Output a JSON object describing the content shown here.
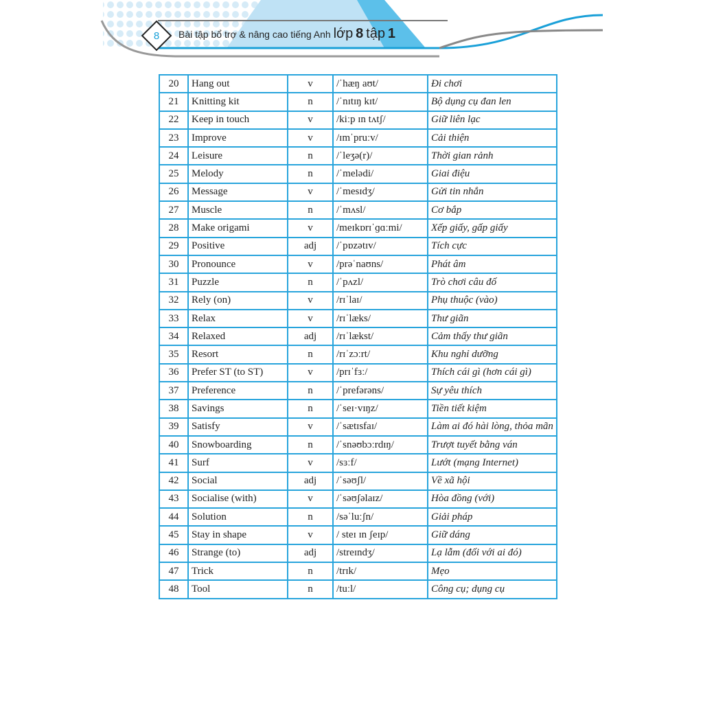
{
  "header": {
    "page_number": "8",
    "title_prefix": "Bài tập bổ trợ & nâng cao tiếng Anh",
    "title_grade": "lớp",
    "title_grade_num": "8",
    "title_volume": "tập",
    "title_volume_num": "1",
    "accent_color": "#27a4dc"
  },
  "rows": [
    [
      "20",
      "Hang out",
      "v",
      "/ˈhæŋ aʊt/",
      "Đi chơi"
    ],
    [
      "21",
      "Knitting kit",
      "n",
      "/ˈnɪtɪŋ kɪt/",
      "Bộ dụng cụ đan len"
    ],
    [
      "22",
      "Keep in touch",
      "v",
      "/kiːp ɪn tʌtʃ/",
      "Giữ liên lạc"
    ],
    [
      "23",
      "Improve",
      "v",
      "/ɪmˈpruːv/",
      "Cải thiện"
    ],
    [
      "24",
      "Leisure",
      "n",
      "/ˈleʒə(r)/",
      "Thời gian rảnh"
    ],
    [
      "25",
      "Melody",
      "n",
      "/ˈmelədi/",
      "Giai điệu"
    ],
    [
      "26",
      "Message",
      "v",
      "/ˈmesɪdʒ/",
      "Gửi tin nhắn"
    ],
    [
      "27",
      "Muscle",
      "n",
      "/ˈmʌsl/",
      "Cơ bắp"
    ],
    [
      "28",
      "Make origami",
      "v",
      "/meɪkɒrɪˈɡɑːmi/",
      "Xếp giấy, gấp giấy"
    ],
    [
      "29",
      "Positive",
      "adj",
      "/ˈpɒzətɪv/",
      "Tích cực"
    ],
    [
      "30",
      "Pronounce",
      "v",
      "/prəˈnaʊns/",
      "Phát âm"
    ],
    [
      "31",
      "Puzzle",
      "n",
      "/ˈpʌzl/",
      "Trò chơi câu đố"
    ],
    [
      "32",
      "Rely (on)",
      "v",
      "/rɪˈlaɪ/",
      "Phụ thuộc (vào)"
    ],
    [
      "33",
      "Relax",
      "v",
      "/rɪˈlæks/",
      "Thư giãn"
    ],
    [
      "34",
      "Relaxed",
      "adj",
      "/rɪˈlækst/",
      "Cảm thấy thư giãn"
    ],
    [
      "35",
      "Resort",
      "n",
      "/rɪˈzɔːrt/",
      "Khu nghỉ dưỡng"
    ],
    [
      "36",
      "Prefer ST (to ST)",
      "v",
      "/prɪˈfɜː/",
      "Thích cái gì (hơn cái gì)"
    ],
    [
      "37",
      "Preference",
      "n",
      "/ˈprefərəns/",
      "Sự yêu thích"
    ],
    [
      "38",
      "Savings",
      "n",
      "/ˈseɪ·vɪŋz/",
      "Tiền tiết kiệm"
    ],
    [
      "39",
      "Satisfy",
      "v",
      "/ˈsætɪsfaɪ/",
      "Làm ai đó hài lòng, thỏa mãn"
    ],
    [
      "40",
      "Snowboarding",
      "n",
      "/ˈsnəʊbɔːrdɪŋ/",
      "Trượt tuyết bằng ván"
    ],
    [
      "41",
      "Surf",
      "v",
      "/sɜːf/",
      "Lướt (mạng Internet)"
    ],
    [
      "42",
      "Social",
      "adj",
      "/ˈsəʊʃl/",
      "Về xã hội"
    ],
    [
      "43",
      "Socialise (with)",
      "v",
      "/ˈsəʊʃəlaɪz/",
      "Hòa đồng (với)"
    ],
    [
      "44",
      "Solution",
      "n",
      "/səˈluːʃn/",
      "Giải pháp"
    ],
    [
      "45",
      "Stay in shape",
      "v",
      "/ steɪ ɪn ʃeɪp/",
      "Giữ dáng"
    ],
    [
      "46",
      "Strange (to)",
      "adj",
      "/streɪndʒ/",
      "Lạ lẫm (đối với ai đó)"
    ],
    [
      "47",
      "Trick",
      "n",
      "/trɪk/",
      "Mẹo"
    ],
    [
      "48",
      "Tool",
      "n",
      "/tuːl/",
      "Công cụ; dụng cụ"
    ]
  ]
}
